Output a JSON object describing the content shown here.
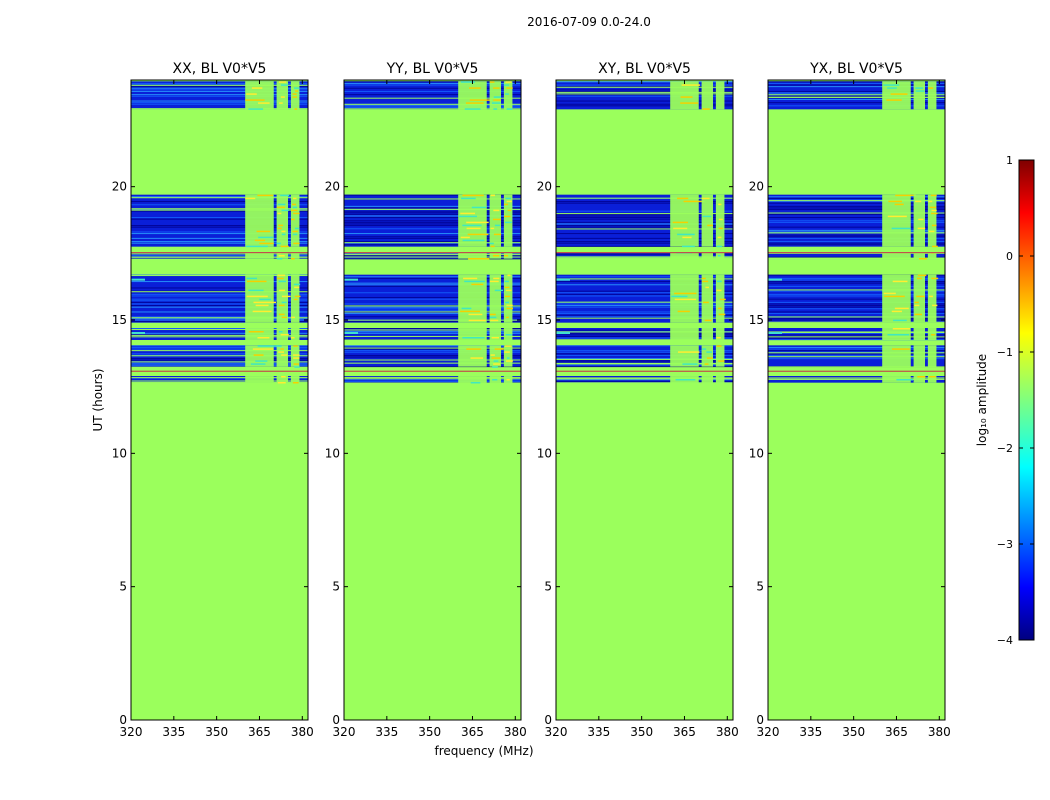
{
  "figure": {
    "suptitle": "2016-07-09 0.0-24.0"
  },
  "chart_data": {
    "type": "heatmap",
    "title": "2016-07-09 0.0-24.0",
    "xlabel": "frequency (MHz)",
    "ylabel": "UT (hours)",
    "xlim": [
      320,
      382
    ],
    "ylim": [
      0,
      24
    ],
    "x_ticks": [
      "320",
      "335",
      "350",
      "365",
      "380"
    ],
    "y_ticks": [
      "0",
      "5",
      "10",
      "15",
      "20"
    ],
    "fill_value_log10": -1.3,
    "rfi_channels_mhz": [
      {
        "from": 360,
        "to": 370
      },
      {
        "from": 371,
        "to": 375
      },
      {
        "from": 376,
        "to": 379
      }
    ],
    "data_bands_hours": [
      {
        "from": 12.65,
        "to": 12.9
      },
      {
        "from": 13.25,
        "to": 14.05
      },
      {
        "from": 14.25,
        "to": 14.7
      },
      {
        "from": 14.9,
        "to": 16.7
      },
      {
        "from": 17.3,
        "to": 17.55
      },
      {
        "from": 17.75,
        "to": 19.7
      },
      {
        "from": 22.9,
        "to": 23.95
      }
    ],
    "panels": [
      {
        "title": "XX, BL V0*V5",
        "rfi_level": "high"
      },
      {
        "title": "YY, BL V0*V5",
        "rfi_level": "high"
      },
      {
        "title": "XY, BL V0*V5",
        "rfi_level": "medium"
      },
      {
        "title": "YX, BL V0*V5",
        "rfi_level": "medium"
      }
    ],
    "colorbar": {
      "label": "log₁₀ amplitude",
      "colormap": "jet",
      "range": [
        -4,
        1
      ],
      "ticks": [
        "1",
        "0",
        "−1",
        "−2",
        "−3",
        "−4"
      ]
    }
  }
}
